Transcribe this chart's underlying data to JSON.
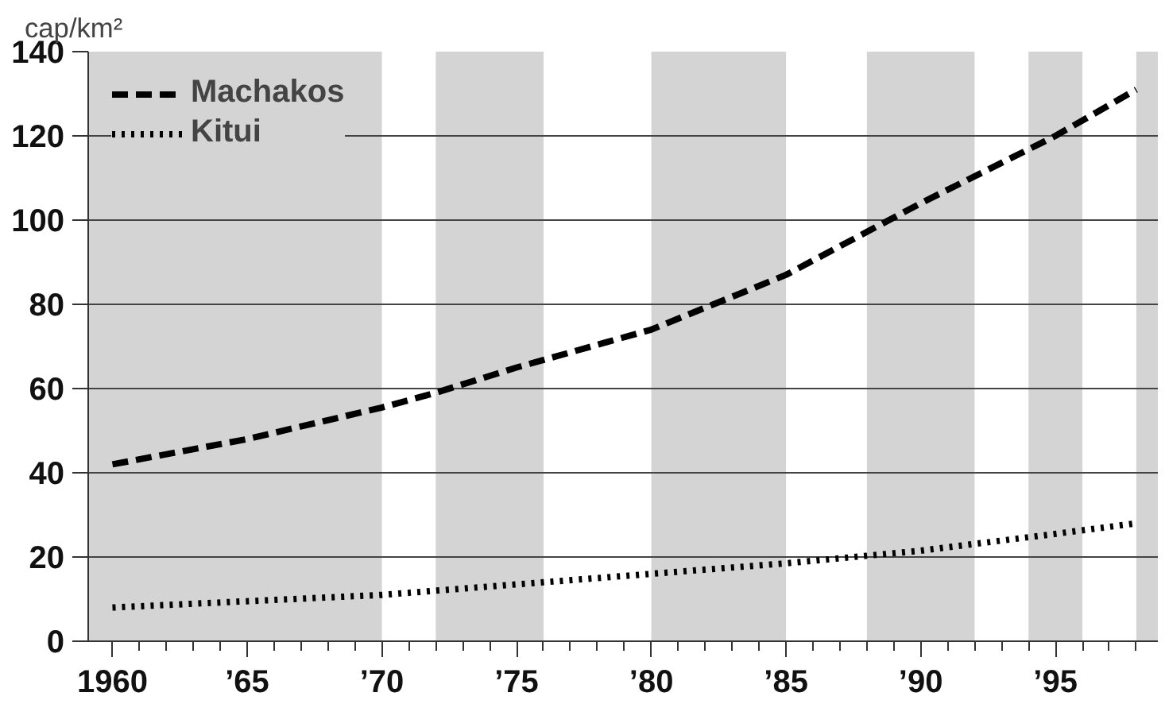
{
  "chart_data": {
    "type": "line",
    "ylabel": "cap/km²",
    "x": [
      1960,
      1965,
      1970,
      1972,
      1975,
      1980,
      1985,
      1990,
      1995,
      1998
    ],
    "series": [
      {
        "name": "Machakos",
        "color": "#000000",
        "line_style": "dashed",
        "values": [
          42,
          48,
          55.5,
          59,
          65,
          74,
          87,
          104,
          120,
          131
        ]
      },
      {
        "name": "Kitui",
        "color": "#000000",
        "line_style": "dotted",
        "values": [
          8,
          9.5,
          11,
          12,
          13.5,
          16,
          18.5,
          21.5,
          25.5,
          28
        ]
      }
    ],
    "xlim": [
      1959.1,
      1998.8
    ],
    "ylim": [
      0,
      140
    ],
    "xticks": [
      {
        "value": 1960,
        "label": "1960"
      },
      {
        "value": 1965,
        "label": "’65"
      },
      {
        "value": 1970,
        "label": "’70"
      },
      {
        "value": 1975,
        "label": "’75"
      },
      {
        "value": 1980,
        "label": "’80"
      },
      {
        "value": 1985,
        "label": "’85"
      },
      {
        "value": 1990,
        "label": "’90"
      },
      {
        "value": 1995,
        "label": "’95"
      }
    ],
    "yticks": [
      0,
      20,
      40,
      60,
      80,
      100,
      120,
      140
    ],
    "grid": "y",
    "legend": "top left",
    "bands": [
      {
        "axis": "x",
        "from": 1959.1,
        "to": 1970,
        "color": "#d4d4d4"
      },
      {
        "axis": "x",
        "from": 1972,
        "to": 1976,
        "color": "#d4d4d4"
      },
      {
        "axis": "x",
        "from": 1980,
        "to": 1985,
        "color": "#d4d4d4"
      },
      {
        "axis": "x",
        "from": 1988,
        "to": 1992,
        "color": "#d4d4d4"
      },
      {
        "axis": "x",
        "from": 1994,
        "to": 1996,
        "color": "#d4d4d4"
      },
      {
        "axis": "x",
        "from": 1998,
        "to": 1998.8,
        "color": "#d4d4d4"
      }
    ]
  }
}
